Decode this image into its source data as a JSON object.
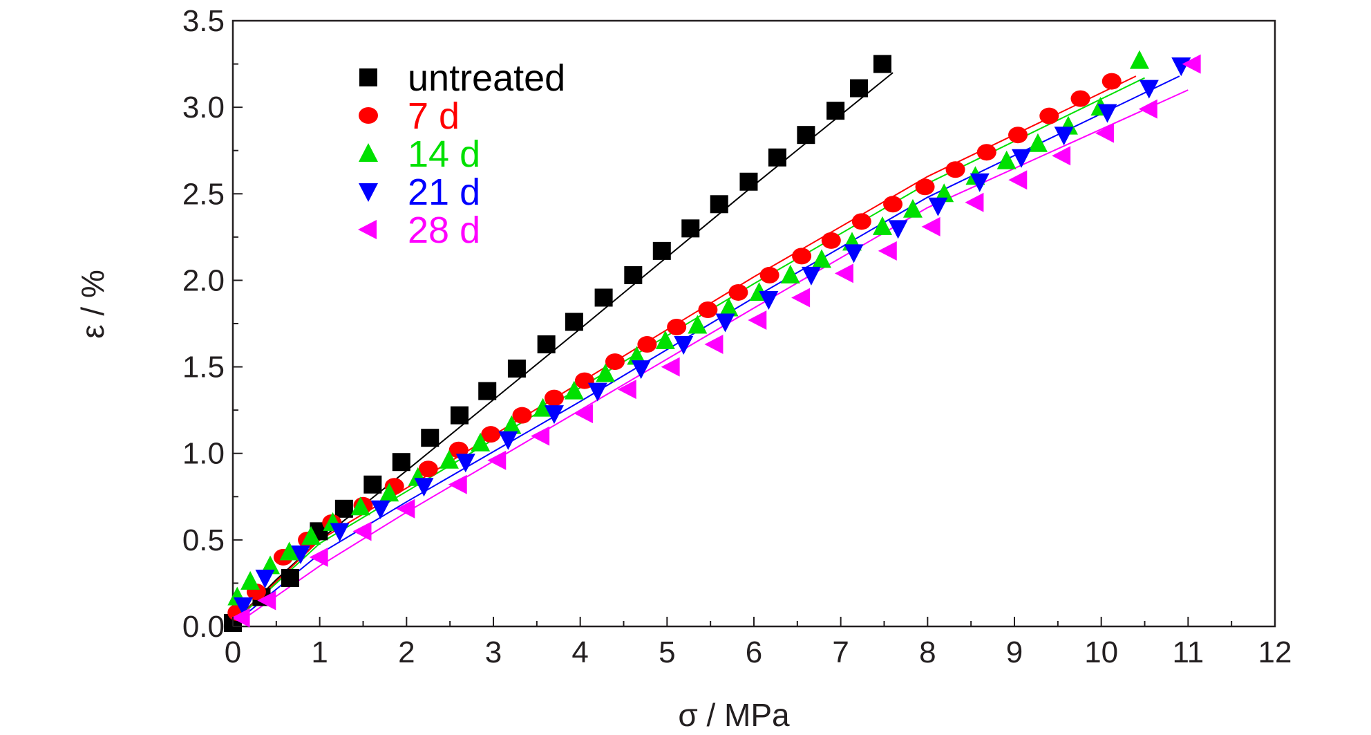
{
  "chart_data": {
    "type": "scatter",
    "xlabel": "σ / MPa",
    "ylabel": "ε / %",
    "xlim": [
      0,
      12
    ],
    "ylim": [
      0,
      3.5
    ],
    "xticks": [
      "0",
      "1",
      "2",
      "3",
      "4",
      "5",
      "6",
      "7",
      "8",
      "9",
      "10",
      "11",
      "12"
    ],
    "yticks": [
      "0.0",
      "0.5",
      "1.0",
      "1.5",
      "2.0",
      "2.5",
      "3.0",
      "3.5"
    ],
    "grid": false,
    "legend_position": "top-left",
    "series": [
      {
        "name": "untreated",
        "color": "#000000",
        "marker": "square",
        "x": [
          0.0,
          0.33,
          0.66,
          0.99,
          1.28,
          1.61,
          1.94,
          2.27,
          2.61,
          2.93,
          3.27,
          3.61,
          3.93,
          4.27,
          4.61,
          4.94,
          5.27,
          5.6,
          5.94,
          6.27,
          6.6,
          6.94,
          7.21,
          7.48
        ],
        "y": [
          0.02,
          0.17,
          0.28,
          0.55,
          0.68,
          0.82,
          0.95,
          1.09,
          1.22,
          1.36,
          1.49,
          1.63,
          1.76,
          1.9,
          2.03,
          2.17,
          2.3,
          2.44,
          2.57,
          2.71,
          2.84,
          2.98,
          3.11,
          3.25
        ],
        "fit": [
          [
            0.0,
            0.02
          ],
          [
            0.5,
            0.27
          ],
          [
            1.0,
            0.5
          ],
          [
            2.0,
            0.9
          ],
          [
            4.0,
            1.72
          ],
          [
            6.0,
            2.55
          ],
          [
            7.6,
            3.2
          ]
        ]
      },
      {
        "name": "7 d",
        "color": "#ff0000",
        "marker": "circle",
        "x": [
          0.05,
          0.27,
          0.58,
          0.86,
          1.14,
          1.5,
          1.86,
          2.25,
          2.6,
          2.97,
          3.33,
          3.7,
          4.05,
          4.4,
          4.77,
          5.11,
          5.47,
          5.82,
          6.18,
          6.55,
          6.89,
          7.24,
          7.6,
          7.97,
          8.32,
          8.68,
          9.04,
          9.4,
          9.76,
          10.12
        ],
        "y": [
          0.08,
          0.2,
          0.4,
          0.5,
          0.6,
          0.7,
          0.81,
          0.91,
          1.02,
          1.11,
          1.22,
          1.32,
          1.42,
          1.53,
          1.63,
          1.73,
          1.83,
          1.93,
          2.03,
          2.14,
          2.23,
          2.34,
          2.44,
          2.54,
          2.64,
          2.74,
          2.84,
          2.95,
          3.05,
          3.15
        ],
        "fit": [
          [
            0.0,
            0.02
          ],
          [
            1.0,
            0.5
          ],
          [
            2.0,
            0.8
          ],
          [
            4.0,
            1.41
          ],
          [
            6.0,
            2.02
          ],
          [
            8.0,
            2.6
          ],
          [
            10.4,
            3.18
          ]
        ]
      },
      {
        "name": "14 d",
        "color": "#00e000",
        "marker": "triangle-up",
        "x": [
          0.05,
          0.2,
          0.43,
          0.65,
          0.9,
          1.15,
          1.47,
          1.8,
          2.13,
          2.49,
          2.85,
          3.21,
          3.57,
          3.93,
          4.29,
          4.65,
          4.98,
          5.35,
          5.71,
          6.06,
          6.42,
          6.78,
          7.13,
          7.48,
          7.83,
          8.19,
          8.55,
          8.91,
          9.27,
          9.62,
          9.99,
          10.44
        ],
        "y": [
          0.17,
          0.26,
          0.35,
          0.43,
          0.52,
          0.6,
          0.69,
          0.77,
          0.86,
          0.96,
          1.06,
          1.16,
          1.26,
          1.36,
          1.46,
          1.56,
          1.65,
          1.74,
          1.84,
          1.93,
          2.03,
          2.12,
          2.22,
          2.31,
          2.41,
          2.5,
          2.6,
          2.69,
          2.79,
          2.89,
          3.0,
          3.27
        ],
        "fit": [
          [
            0.0,
            0.02
          ],
          [
            1.0,
            0.48
          ],
          [
            2.0,
            0.78
          ],
          [
            4.0,
            1.38
          ],
          [
            6.0,
            1.98
          ],
          [
            8.0,
            2.56
          ],
          [
            10.5,
            3.17
          ]
        ]
      },
      {
        "name": "21 d",
        "color": "#0000ff",
        "marker": "triangle-down",
        "x": [
          0.12,
          0.37,
          0.78,
          1.23,
          1.7,
          2.2,
          2.68,
          3.17,
          3.7,
          4.2,
          4.7,
          5.19,
          5.67,
          6.17,
          6.66,
          7.15,
          7.66,
          8.12,
          8.6,
          9.08,
          9.57,
          10.07,
          10.55,
          10.92
        ],
        "y": [
          0.12,
          0.28,
          0.42,
          0.55,
          0.68,
          0.81,
          0.95,
          1.08,
          1.23,
          1.36,
          1.49,
          1.63,
          1.76,
          1.89,
          2.03,
          2.16,
          2.3,
          2.43,
          2.57,
          2.71,
          2.84,
          2.97,
          3.11,
          3.24
        ],
        "fit": [
          [
            0.0,
            0.01
          ],
          [
            1.0,
            0.42
          ],
          [
            2.0,
            0.72
          ],
          [
            4.0,
            1.3
          ],
          [
            6.0,
            1.9
          ],
          [
            8.0,
            2.48
          ],
          [
            10.9,
            3.18
          ]
        ]
      },
      {
        "name": "28 d",
        "color": "#ff00ff",
        "marker": "triangle-left",
        "x": [
          0.1,
          0.4,
          1.0,
          1.5,
          2.0,
          2.6,
          3.05,
          3.55,
          4.05,
          4.55,
          5.05,
          5.55,
          6.05,
          6.55,
          7.05,
          7.55,
          8.05,
          8.55,
          9.05,
          9.55,
          10.05,
          10.55,
          11.05
        ],
        "y": [
          0.05,
          0.15,
          0.4,
          0.55,
          0.68,
          0.82,
          0.96,
          1.1,
          1.23,
          1.37,
          1.5,
          1.63,
          1.77,
          1.9,
          2.04,
          2.17,
          2.31,
          2.45,
          2.58,
          2.72,
          2.85,
          2.99,
          3.25
        ],
        "fit": [
          [
            0.0,
            0.0
          ],
          [
            1.0,
            0.35
          ],
          [
            2.0,
            0.66
          ],
          [
            4.0,
            1.25
          ],
          [
            6.0,
            1.84
          ],
          [
            8.0,
            2.42
          ],
          [
            11.0,
            3.1
          ]
        ]
      }
    ]
  }
}
